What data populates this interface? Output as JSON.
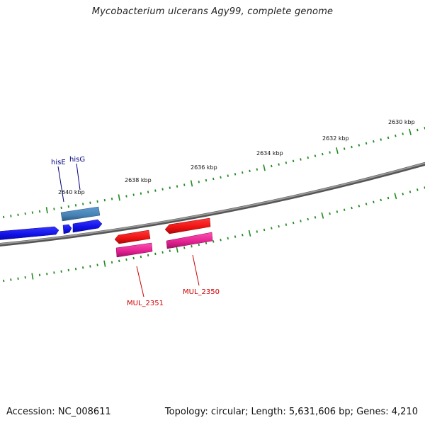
{
  "title": "Mycobacterium ulcerans Agy99, complete genome",
  "accession_text": "Accession: NC_008611",
  "topology_text": "Topology: circular; Length: 5,631,606 bp; Genes: 4,210",
  "scale_labels": [
    "2640 kbp",
    "2638 kbp",
    "2636 kbp",
    "2634 kbp",
    "2632 kbp",
    "2630 kbp"
  ],
  "genes": [
    {
      "name": "hisE",
      "color": "#000080"
    },
    {
      "name": "hisG",
      "color": "#000080"
    },
    {
      "name": "MUL_2351",
      "color": "#cc0000"
    },
    {
      "name": "MUL_2350",
      "color": "#cc0000"
    }
  ],
  "colors": {
    "backbone": "#7a7a7a",
    "ticks": "#228b22",
    "forward_cds": "#1111ee",
    "forward_gene": "#4682b4",
    "reverse_cds": "#ee1111",
    "reverse_gene": "#e0208f"
  }
}
